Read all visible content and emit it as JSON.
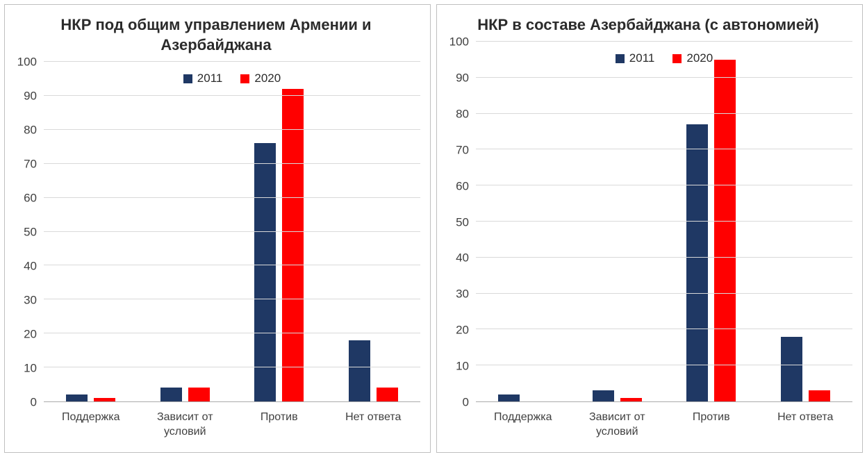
{
  "chart_data": [
    {
      "type": "bar",
      "title": "НКР под общим управлением Армении и Азербайджана",
      "categories": [
        "Поддержка",
        "Зависит от условий",
        "Против",
        "Нет ответа"
      ],
      "series": [
        {
          "name": "2011",
          "color": "#1f3864",
          "values": [
            2,
            4,
            76,
            18
          ]
        },
        {
          "name": "2020",
          "color": "#ff0000",
          "values": [
            1,
            4,
            92,
            4
          ]
        }
      ],
      "ylim": [
        0,
        100
      ],
      "yticks": [
        0,
        10,
        20,
        30,
        40,
        50,
        60,
        70,
        80,
        90,
        100
      ],
      "grid": true,
      "legend_position": "top-center-inside"
    },
    {
      "type": "bar",
      "title": "НКР в составе Азербайджана (с автономией)",
      "categories": [
        "Поддержка",
        "Зависит от условий",
        "Против",
        "Нет ответа"
      ],
      "series": [
        {
          "name": "2011",
          "color": "#1f3864",
          "values": [
            2,
            3,
            77,
            18
          ]
        },
        {
          "name": "2020",
          "color": "#ff0000",
          "values": [
            0,
            1,
            95,
            3
          ]
        }
      ],
      "ylim": [
        0,
        100
      ],
      "yticks": [
        0,
        10,
        20,
        30,
        40,
        50,
        60,
        70,
        80,
        90,
        100
      ],
      "grid": true,
      "legend_position": "top-center-inside"
    }
  ]
}
